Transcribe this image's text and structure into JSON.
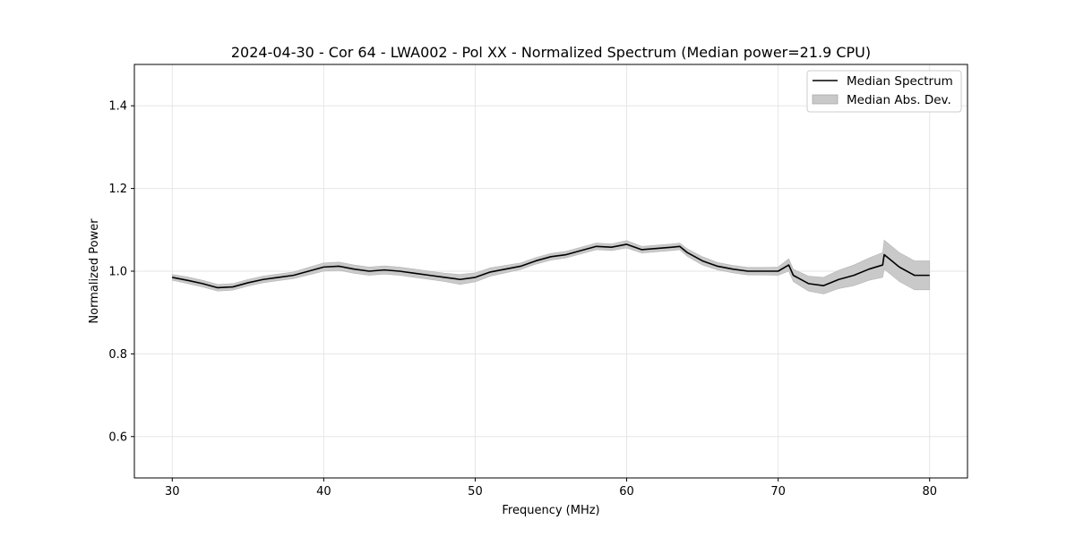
{
  "chart_data": {
    "type": "line",
    "title": "2024-04-30 - Cor 64 - LWA002 - Pol XX - Normalized Spectrum (Median power=21.9 CPU)",
    "xlabel": "Frequency (MHz)",
    "ylabel": "Normalized Power",
    "xlim": [
      27.5,
      82.5
    ],
    "ylim": [
      0.5,
      1.5
    ],
    "xticks": [
      30,
      40,
      50,
      60,
      70,
      80
    ],
    "yticks": [
      0.6,
      0.8,
      1.0,
      1.2,
      1.4
    ],
    "xtick_labels": [
      "30",
      "40",
      "50",
      "60",
      "70",
      "80"
    ],
    "ytick_labels": [
      "0.6",
      "0.8",
      "1.0",
      "1.2",
      "1.4"
    ],
    "grid": true,
    "legend_position": "top-right",
    "legend": [
      "Median Spectrum",
      "Median Abs. Dev."
    ],
    "series": [
      {
        "name": "Median Spectrum",
        "color": "#000000",
        "x": [
          30,
          31,
          32,
          33,
          34,
          35,
          36,
          37,
          38,
          39,
          40,
          41,
          42,
          43,
          44,
          45,
          46,
          47,
          48,
          49,
          50,
          51,
          52,
          53,
          54,
          55,
          56,
          57,
          58,
          59,
          60,
          61,
          62,
          63,
          63.5,
          64,
          65,
          66,
          67,
          68,
          69,
          70,
          70.7,
          71,
          72,
          73,
          74,
          75,
          76,
          76.9,
          77,
          78,
          79,
          80
        ],
        "y": [
          0.985,
          0.978,
          0.97,
          0.96,
          0.962,
          0.972,
          0.98,
          0.985,
          0.99,
          1.0,
          1.01,
          1.012,
          1.005,
          1.0,
          1.003,
          1.0,
          0.995,
          0.99,
          0.985,
          0.98,
          0.985,
          0.998,
          1.005,
          1.012,
          1.025,
          1.035,
          1.04,
          1.05,
          1.06,
          1.058,
          1.065,
          1.052,
          1.055,
          1.058,
          1.06,
          1.045,
          1.025,
          1.012,
          1.005,
          1.0,
          1.0,
          1.0,
          1.015,
          0.99,
          0.97,
          0.965,
          0.98,
          0.99,
          1.005,
          1.015,
          1.04,
          1.01,
          0.99,
          0.99
        ]
      },
      {
        "name": "Median Abs. Dev.",
        "color": "#c9c9c9",
        "x": [
          30,
          31,
          32,
          33,
          34,
          35,
          36,
          37,
          38,
          39,
          40,
          41,
          42,
          43,
          44,
          45,
          46,
          47,
          48,
          49,
          50,
          51,
          52,
          53,
          54,
          55,
          56,
          57,
          58,
          59,
          60,
          61,
          62,
          63,
          63.5,
          64,
          65,
          66,
          67,
          68,
          69,
          70,
          70.7,
          71,
          72,
          73,
          74,
          75,
          76,
          76.9,
          77,
          78,
          79,
          80
        ],
        "lower": [
          0.978,
          0.97,
          0.962,
          0.952,
          0.954,
          0.964,
          0.972,
          0.977,
          0.982,
          0.991,
          1.0,
          1.002,
          0.995,
          0.99,
          0.993,
          0.99,
          0.985,
          0.98,
          0.975,
          0.968,
          0.974,
          0.988,
          0.996,
          1.004,
          1.017,
          1.027,
          1.032,
          1.042,
          1.052,
          1.05,
          1.056,
          1.044,
          1.047,
          1.05,
          1.052,
          1.036,
          1.015,
          1.003,
          0.996,
          0.991,
          0.991,
          0.99,
          1.0,
          0.975,
          0.952,
          0.945,
          0.958,
          0.965,
          0.978,
          0.985,
          1.005,
          0.975,
          0.955,
          0.955
        ],
        "upper": [
          0.992,
          0.986,
          0.978,
          0.968,
          0.97,
          0.98,
          0.988,
          0.993,
          0.998,
          1.009,
          1.02,
          1.022,
          1.015,
          1.01,
          1.013,
          1.01,
          1.005,
          1.0,
          0.995,
          0.992,
          0.996,
          1.008,
          1.014,
          1.02,
          1.033,
          1.043,
          1.048,
          1.058,
          1.068,
          1.066,
          1.074,
          1.06,
          1.063,
          1.066,
          1.068,
          1.054,
          1.035,
          1.021,
          1.014,
          1.009,
          1.009,
          1.01,
          1.03,
          1.005,
          0.988,
          0.985,
          1.002,
          1.015,
          1.032,
          1.045,
          1.075,
          1.045,
          1.025,
          1.025
        ]
      }
    ]
  }
}
